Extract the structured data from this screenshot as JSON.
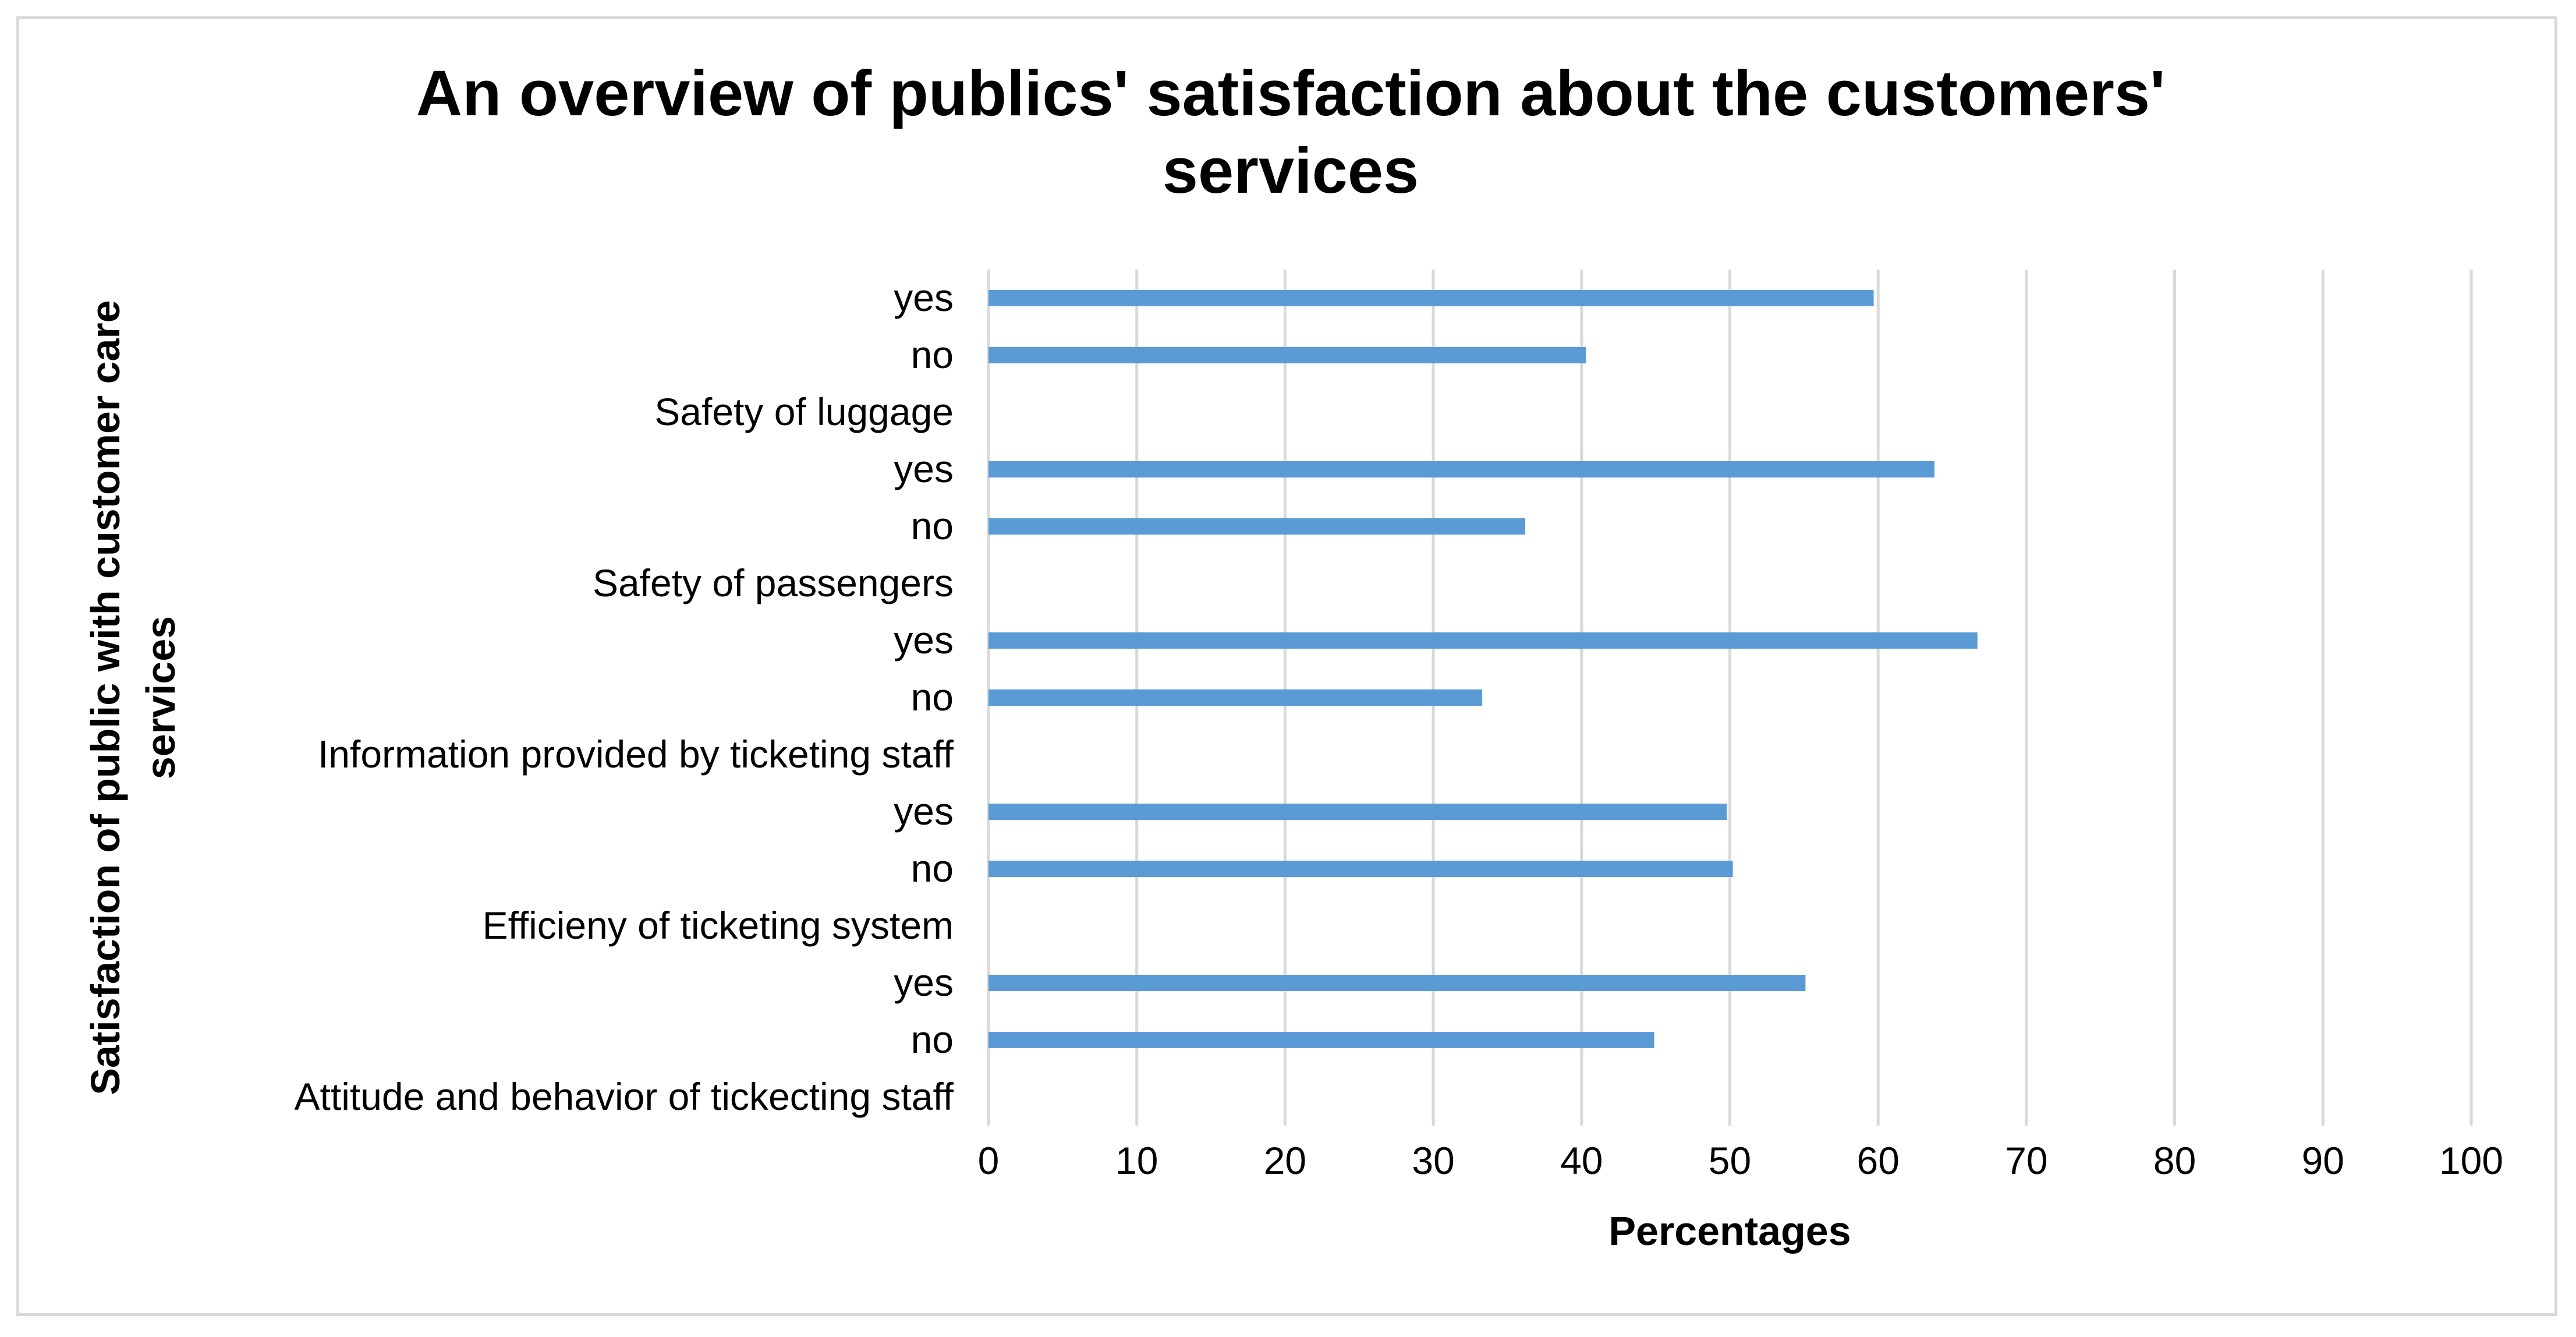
{
  "chart_data": {
    "type": "bar",
    "orientation": "horizontal",
    "title": "An overview of publics' satisfaction about the customers' services",
    "title_lines": [
      "An overview of publics' satisfaction about the customers'",
      "services"
    ],
    "xlabel": "Percentages",
    "ylabel": "Satisfaction of public with customer care services",
    "ylabel_lines": [
      "Satisfaction of public with customer care",
      "services"
    ],
    "xlim": [
      0,
      100
    ],
    "xticks": [
      0,
      10,
      20,
      30,
      40,
      50,
      60,
      70,
      80,
      90,
      100
    ],
    "gridlines": true,
    "legend": "none",
    "bar_color": "#5b9bd5",
    "grid_color": "#d9d9d9",
    "categories_top_to_bottom": [
      {
        "label": "yes",
        "value": 59.7
      },
      {
        "label": "no",
        "value": 40.3
      },
      {
        "label": "Safety of luggage",
        "value": null
      },
      {
        "label": "yes",
        "value": 63.8
      },
      {
        "label": "no",
        "value": 36.2
      },
      {
        "label": "Safety of passengers",
        "value": null
      },
      {
        "label": "yes",
        "value": 66.7
      },
      {
        "label": "no",
        "value": 33.3
      },
      {
        "label": "Information provided by ticketing staff",
        "value": null
      },
      {
        "label": "yes",
        "value": 49.8
      },
      {
        "label": "no",
        "value": 50.2
      },
      {
        "label": "Efficieny of ticketing system",
        "value": null
      },
      {
        "label": "yes",
        "value": 55.1
      },
      {
        "label": "no",
        "value": 44.9
      },
      {
        "label": "Attitude and behavior of tickecting staff",
        "value": null
      }
    ]
  }
}
